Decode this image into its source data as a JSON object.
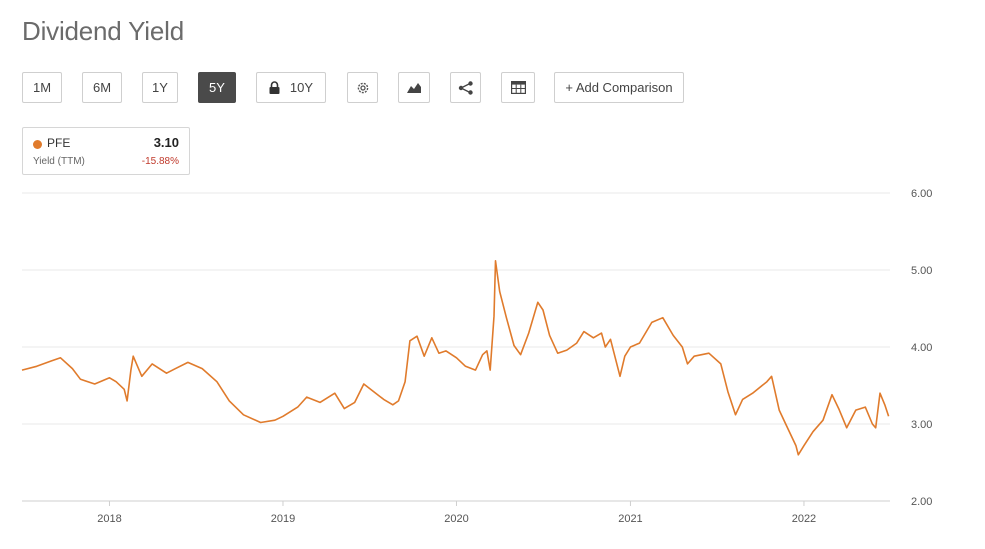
{
  "page": {
    "title": "Dividend Yield"
  },
  "toolbar": {
    "ranges": [
      "1M",
      "6M",
      "1Y",
      "5Y",
      "10Y"
    ],
    "active_range": "5Y",
    "add_comparison": "+ Add Comparison",
    "icons": [
      "lock-icon",
      "gear-icon",
      "chart-type-icon",
      "share-icon",
      "table-icon"
    ]
  },
  "legend": {
    "ticker": "PFE",
    "value": "3.10",
    "label": "Yield (TTM)",
    "change": "-15.88%",
    "color": "#e07b2c",
    "change_color": "#c0392b"
  },
  "chart_data": {
    "type": "line",
    "title": "Dividend Yield",
    "xlabel": "",
    "ylabel": "",
    "x_ticks": [
      "2018",
      "2019",
      "2020",
      "2021",
      "2022"
    ],
    "y_ticks": [
      "2.00",
      "3.00",
      "4.00",
      "5.00",
      "6.00"
    ],
    "ylim": [
      2.0,
      6.0
    ],
    "xlim": [
      "2017-07",
      "2022-07"
    ],
    "y_axis_position": "right",
    "grid": true,
    "series": [
      {
        "name": "PFE",
        "color": "#e07b2c",
        "points": [
          [
            "2017-07-01",
            3.7
          ],
          [
            "2017-08-01",
            3.75
          ],
          [
            "2017-09-01",
            3.82
          ],
          [
            "2017-09-20",
            3.86
          ],
          [
            "2017-10-15",
            3.72
          ],
          [
            "2017-11-01",
            3.58
          ],
          [
            "2017-12-01",
            3.52
          ],
          [
            "2018-01-01",
            3.6
          ],
          [
            "2018-01-15",
            3.55
          ],
          [
            "2018-02-01",
            3.45
          ],
          [
            "2018-02-07",
            3.3
          ],
          [
            "2018-02-15",
            3.7
          ],
          [
            "2018-02-20",
            3.88
          ],
          [
            "2018-03-10",
            3.62
          ],
          [
            "2018-04-01",
            3.78
          ],
          [
            "2018-05-01",
            3.66
          ],
          [
            "2018-05-20",
            3.72
          ],
          [
            "2018-06-15",
            3.8
          ],
          [
            "2018-07-15",
            3.72
          ],
          [
            "2018-08-15",
            3.55
          ],
          [
            "2018-09-10",
            3.3
          ],
          [
            "2018-10-10",
            3.12
          ],
          [
            "2018-11-15",
            3.02
          ],
          [
            "2018-12-15",
            3.05
          ],
          [
            "2019-01-01",
            3.1
          ],
          [
            "2019-02-01",
            3.22
          ],
          [
            "2019-02-20",
            3.35
          ],
          [
            "2019-03-20",
            3.28
          ],
          [
            "2019-04-20",
            3.4
          ],
          [
            "2019-05-10",
            3.2
          ],
          [
            "2019-06-01",
            3.28
          ],
          [
            "2019-06-20",
            3.52
          ],
          [
            "2019-07-15",
            3.4
          ],
          [
            "2019-08-01",
            3.32
          ],
          [
            "2019-08-20",
            3.25
          ],
          [
            "2019-09-01",
            3.3
          ],
          [
            "2019-09-15",
            3.55
          ],
          [
            "2019-09-25",
            4.08
          ],
          [
            "2019-10-10",
            4.14
          ],
          [
            "2019-10-25",
            3.88
          ],
          [
            "2019-11-10",
            4.12
          ],
          [
            "2019-11-25",
            3.92
          ],
          [
            "2019-12-10",
            3.95
          ],
          [
            "2020-01-01",
            3.86
          ],
          [
            "2020-01-20",
            3.75
          ],
          [
            "2020-02-10",
            3.7
          ],
          [
            "2020-02-25",
            3.9
          ],
          [
            "2020-03-05",
            3.95
          ],
          [
            "2020-03-12",
            3.7
          ],
          [
            "2020-03-20",
            4.4
          ],
          [
            "2020-03-23",
            5.12
          ],
          [
            "2020-04-01",
            4.72
          ],
          [
            "2020-04-15",
            4.38
          ],
          [
            "2020-05-01",
            4.02
          ],
          [
            "2020-05-15",
            3.9
          ],
          [
            "2020-06-01",
            4.18
          ],
          [
            "2020-06-20",
            4.58
          ],
          [
            "2020-07-01",
            4.48
          ],
          [
            "2020-07-15",
            4.15
          ],
          [
            "2020-08-01",
            3.92
          ],
          [
            "2020-08-20",
            3.96
          ],
          [
            "2020-09-10",
            4.05
          ],
          [
            "2020-09-25",
            4.2
          ],
          [
            "2020-10-15",
            4.12
          ],
          [
            "2020-11-01",
            4.18
          ],
          [
            "2020-11-09",
            4.0
          ],
          [
            "2020-11-20",
            4.1
          ],
          [
            "2020-12-10",
            3.62
          ],
          [
            "2020-12-20",
            3.88
          ],
          [
            "2021-01-01",
            4.0
          ],
          [
            "2021-01-20",
            4.05
          ],
          [
            "2021-02-15",
            4.32
          ],
          [
            "2021-03-10",
            4.38
          ],
          [
            "2021-04-01",
            4.15
          ],
          [
            "2021-04-20",
            4.0
          ],
          [
            "2021-05-01",
            3.78
          ],
          [
            "2021-05-15",
            3.88
          ],
          [
            "2021-06-15",
            3.92
          ],
          [
            "2021-07-10",
            3.78
          ],
          [
            "2021-07-25",
            3.42
          ],
          [
            "2021-08-10",
            3.12
          ],
          [
            "2021-08-25",
            3.32
          ],
          [
            "2021-09-15",
            3.4
          ],
          [
            "2021-10-15",
            3.55
          ],
          [
            "2021-10-25",
            3.62
          ],
          [
            "2021-11-10",
            3.18
          ],
          [
            "2021-11-25",
            2.98
          ],
          [
            "2021-12-15",
            2.72
          ],
          [
            "2021-12-20",
            2.6
          ],
          [
            "2022-01-01",
            2.72
          ],
          [
            "2022-01-20",
            2.9
          ],
          [
            "2022-02-10",
            3.05
          ],
          [
            "2022-03-01",
            3.38
          ],
          [
            "2022-03-15",
            3.2
          ],
          [
            "2022-04-01",
            2.95
          ],
          [
            "2022-04-20",
            3.18
          ],
          [
            "2022-05-10",
            3.22
          ],
          [
            "2022-05-25",
            3.0
          ],
          [
            "2022-06-01",
            2.95
          ],
          [
            "2022-06-10",
            3.4
          ],
          [
            "2022-06-20",
            3.25
          ],
          [
            "2022-06-28",
            3.1
          ]
        ]
      }
    ]
  }
}
